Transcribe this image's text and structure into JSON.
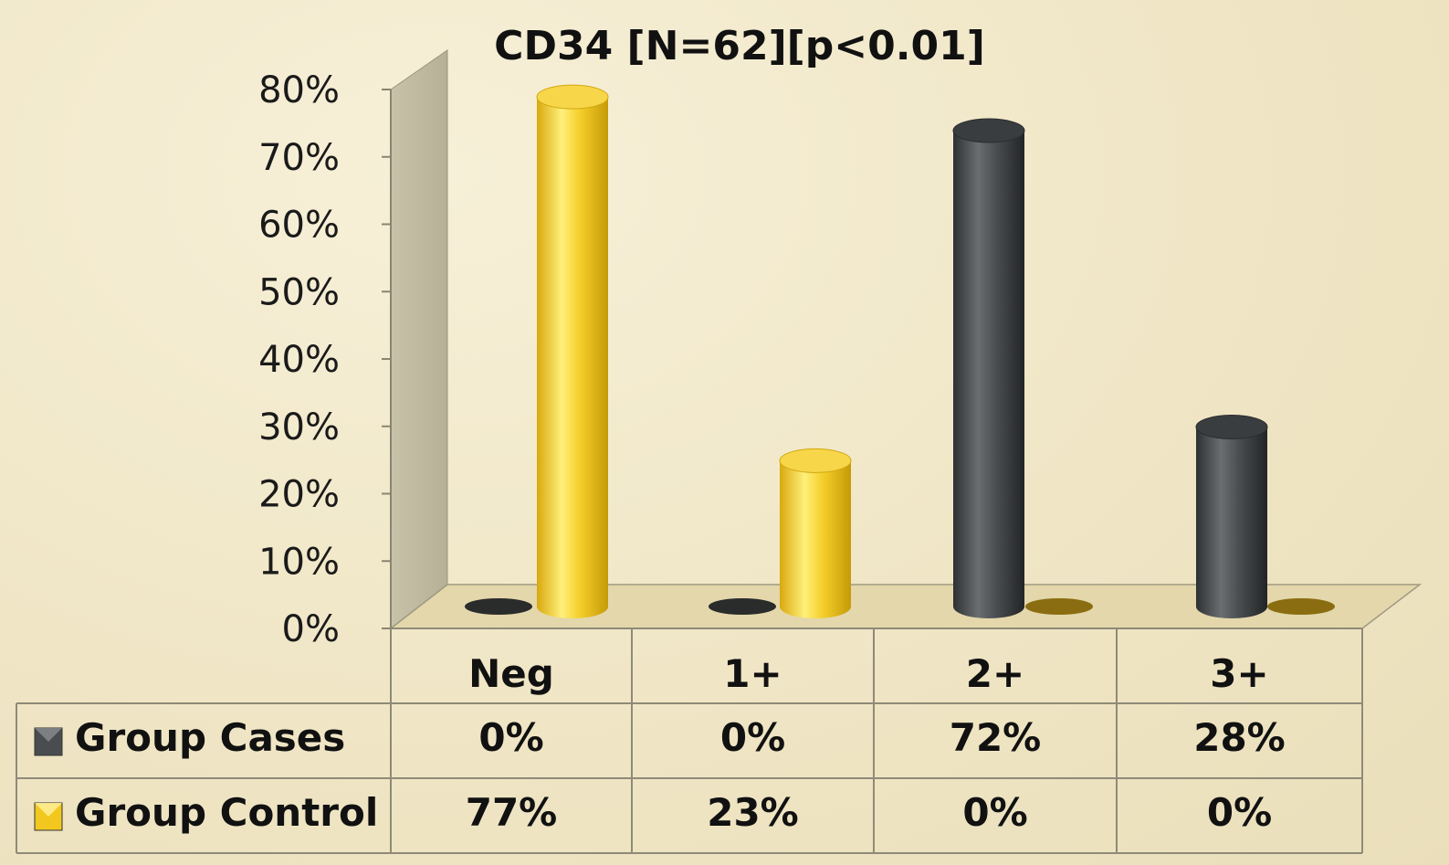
{
  "chart_data": {
    "type": "bar",
    "title": "CD34 [N=62][p<0.01]",
    "categories": [
      "Neg",
      "1+",
      "2+",
      "3+"
    ],
    "series": [
      {
        "name": "Group Cases",
        "values": [
          0,
          0,
          72,
          28
        ],
        "labels": [
          "0%",
          "0%",
          "72%",
          "28%"
        ],
        "color": "#4a4d4f"
      },
      {
        "name": "Group Control",
        "values": [
          77,
          23,
          0,
          0
        ],
        "labels": [
          "77%",
          "23%",
          "0%",
          "0%"
        ],
        "color": "#f2c81f"
      }
    ],
    "ylim": [
      0,
      80
    ],
    "yticks": [
      "0%",
      "10%",
      "20%",
      "30%",
      "40%",
      "50%",
      "60%",
      "70%",
      "80%"
    ],
    "xlabel": "",
    "ylabel": "",
    "grid": false,
    "legend": "data-table",
    "style": "3d-cylinder"
  }
}
